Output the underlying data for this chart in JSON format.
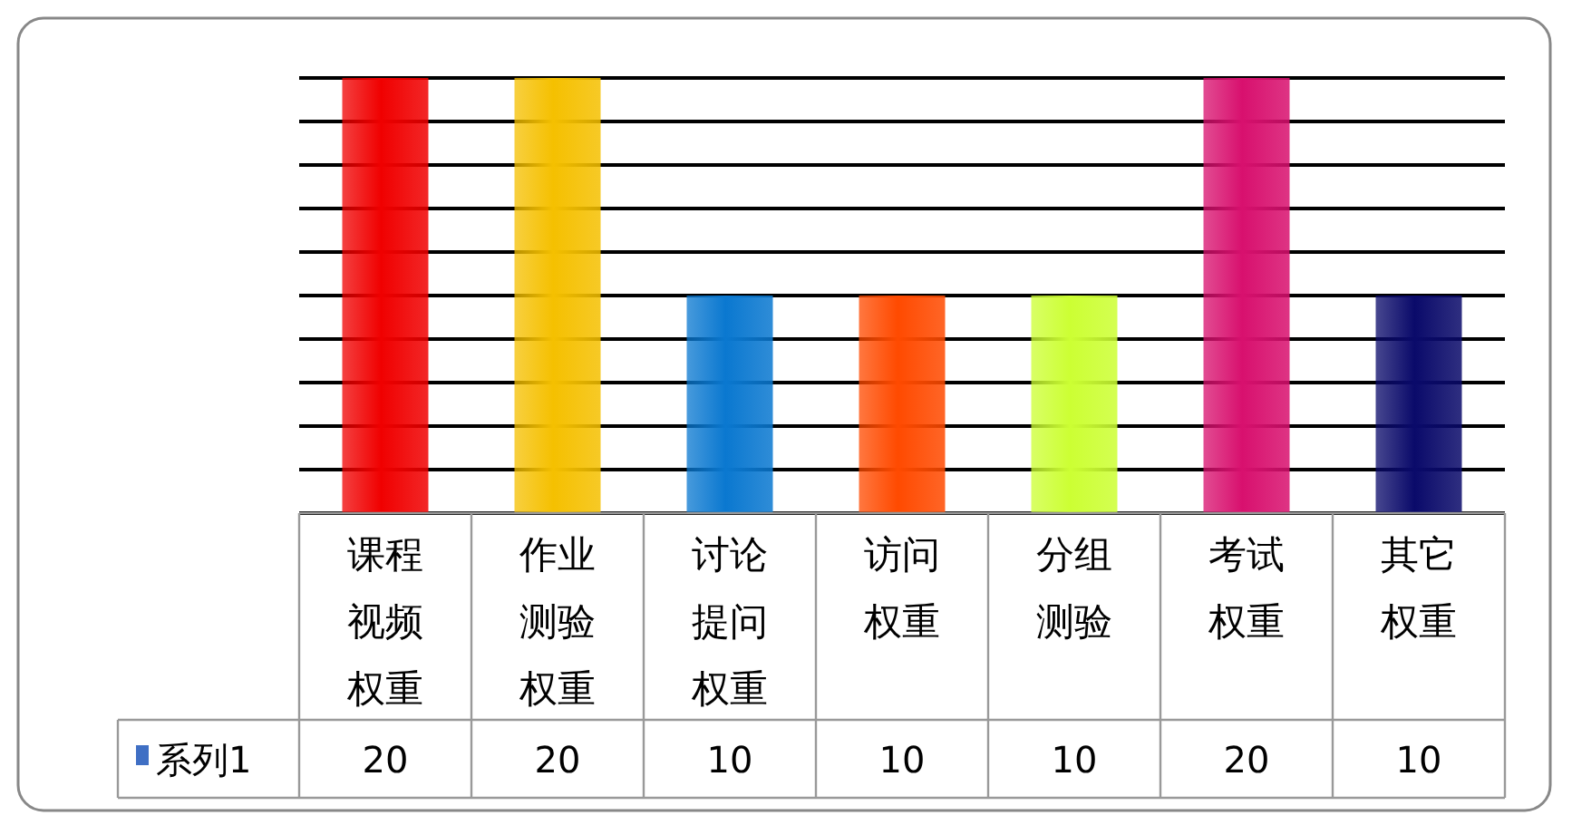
{
  "chart_data": {
    "type": "bar",
    "categories": [
      "课程视频权重",
      "作业测验权重",
      "讨论提问权重",
      "访问权重",
      "分组测验",
      "考试权重",
      "其它权重"
    ],
    "series": [
      {
        "name": "系列1",
        "color": "#3f6fc4",
        "colors": [
          "#f00000",
          "#f5c000",
          "#0a78d0",
          "#ff4a00",
          "#ccff33",
          "#d8106e",
          "#0a0a6a"
        ],
        "values": [
          20,
          20,
          10,
          10,
          10,
          20,
          10
        ]
      }
    ],
    "ylim": [
      0,
      20
    ],
    "yticks": [
      {
        "value": 0,
        "label": null
      },
      {
        "value": 2,
        "label": null
      },
      {
        "value": 4,
        "label": null
      },
      {
        "value": 6,
        "label": null
      },
      {
        "value": 8,
        "label": null
      },
      {
        "value": 10,
        "label": null
      },
      {
        "value": 12,
        "label": null
      },
      {
        "value": 14,
        "label": null
      },
      {
        "value": 16,
        "label": null
      },
      {
        "value": 18,
        "label": null
      },
      {
        "value": 20,
        "label": null
      }
    ],
    "grid": "y",
    "data_labels": true,
    "tick_labels": "x"
  }
}
